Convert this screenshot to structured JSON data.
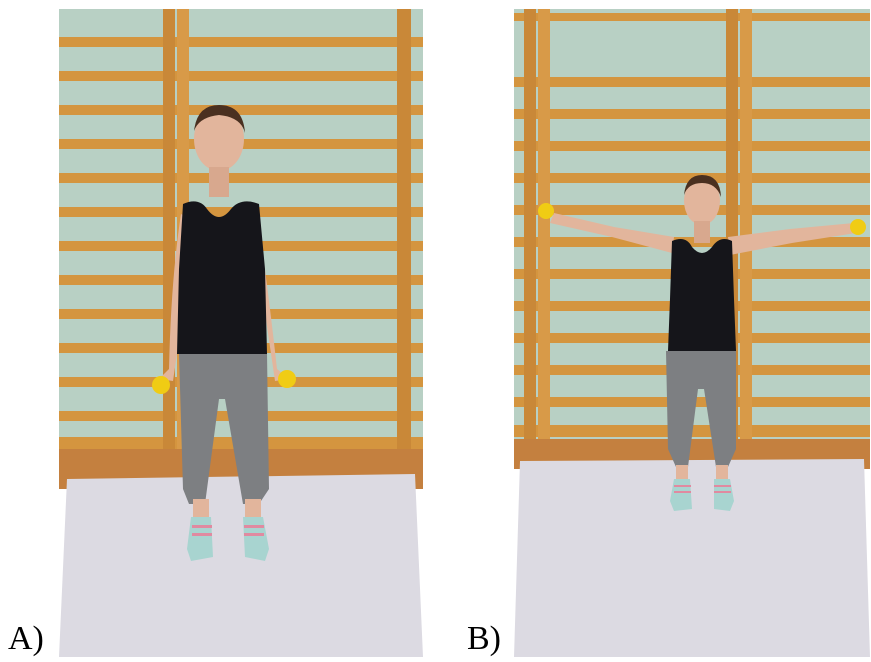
{
  "panels": [
    {
      "label": "A)",
      "pose": "arms-down-holding-dumbbells"
    },
    {
      "label": "B)",
      "pose": "arms-abducted-holding-dumbbells"
    }
  ],
  "colors": {
    "wall": "#b8d0c4",
    "bars": "#d79a45",
    "floor": "#c9864a",
    "mat": "#dcdae2",
    "top": "#15151a",
    "leggings": "#7d7f82",
    "skin": "#e2b59c",
    "dumbbell": "#f0cc14"
  }
}
